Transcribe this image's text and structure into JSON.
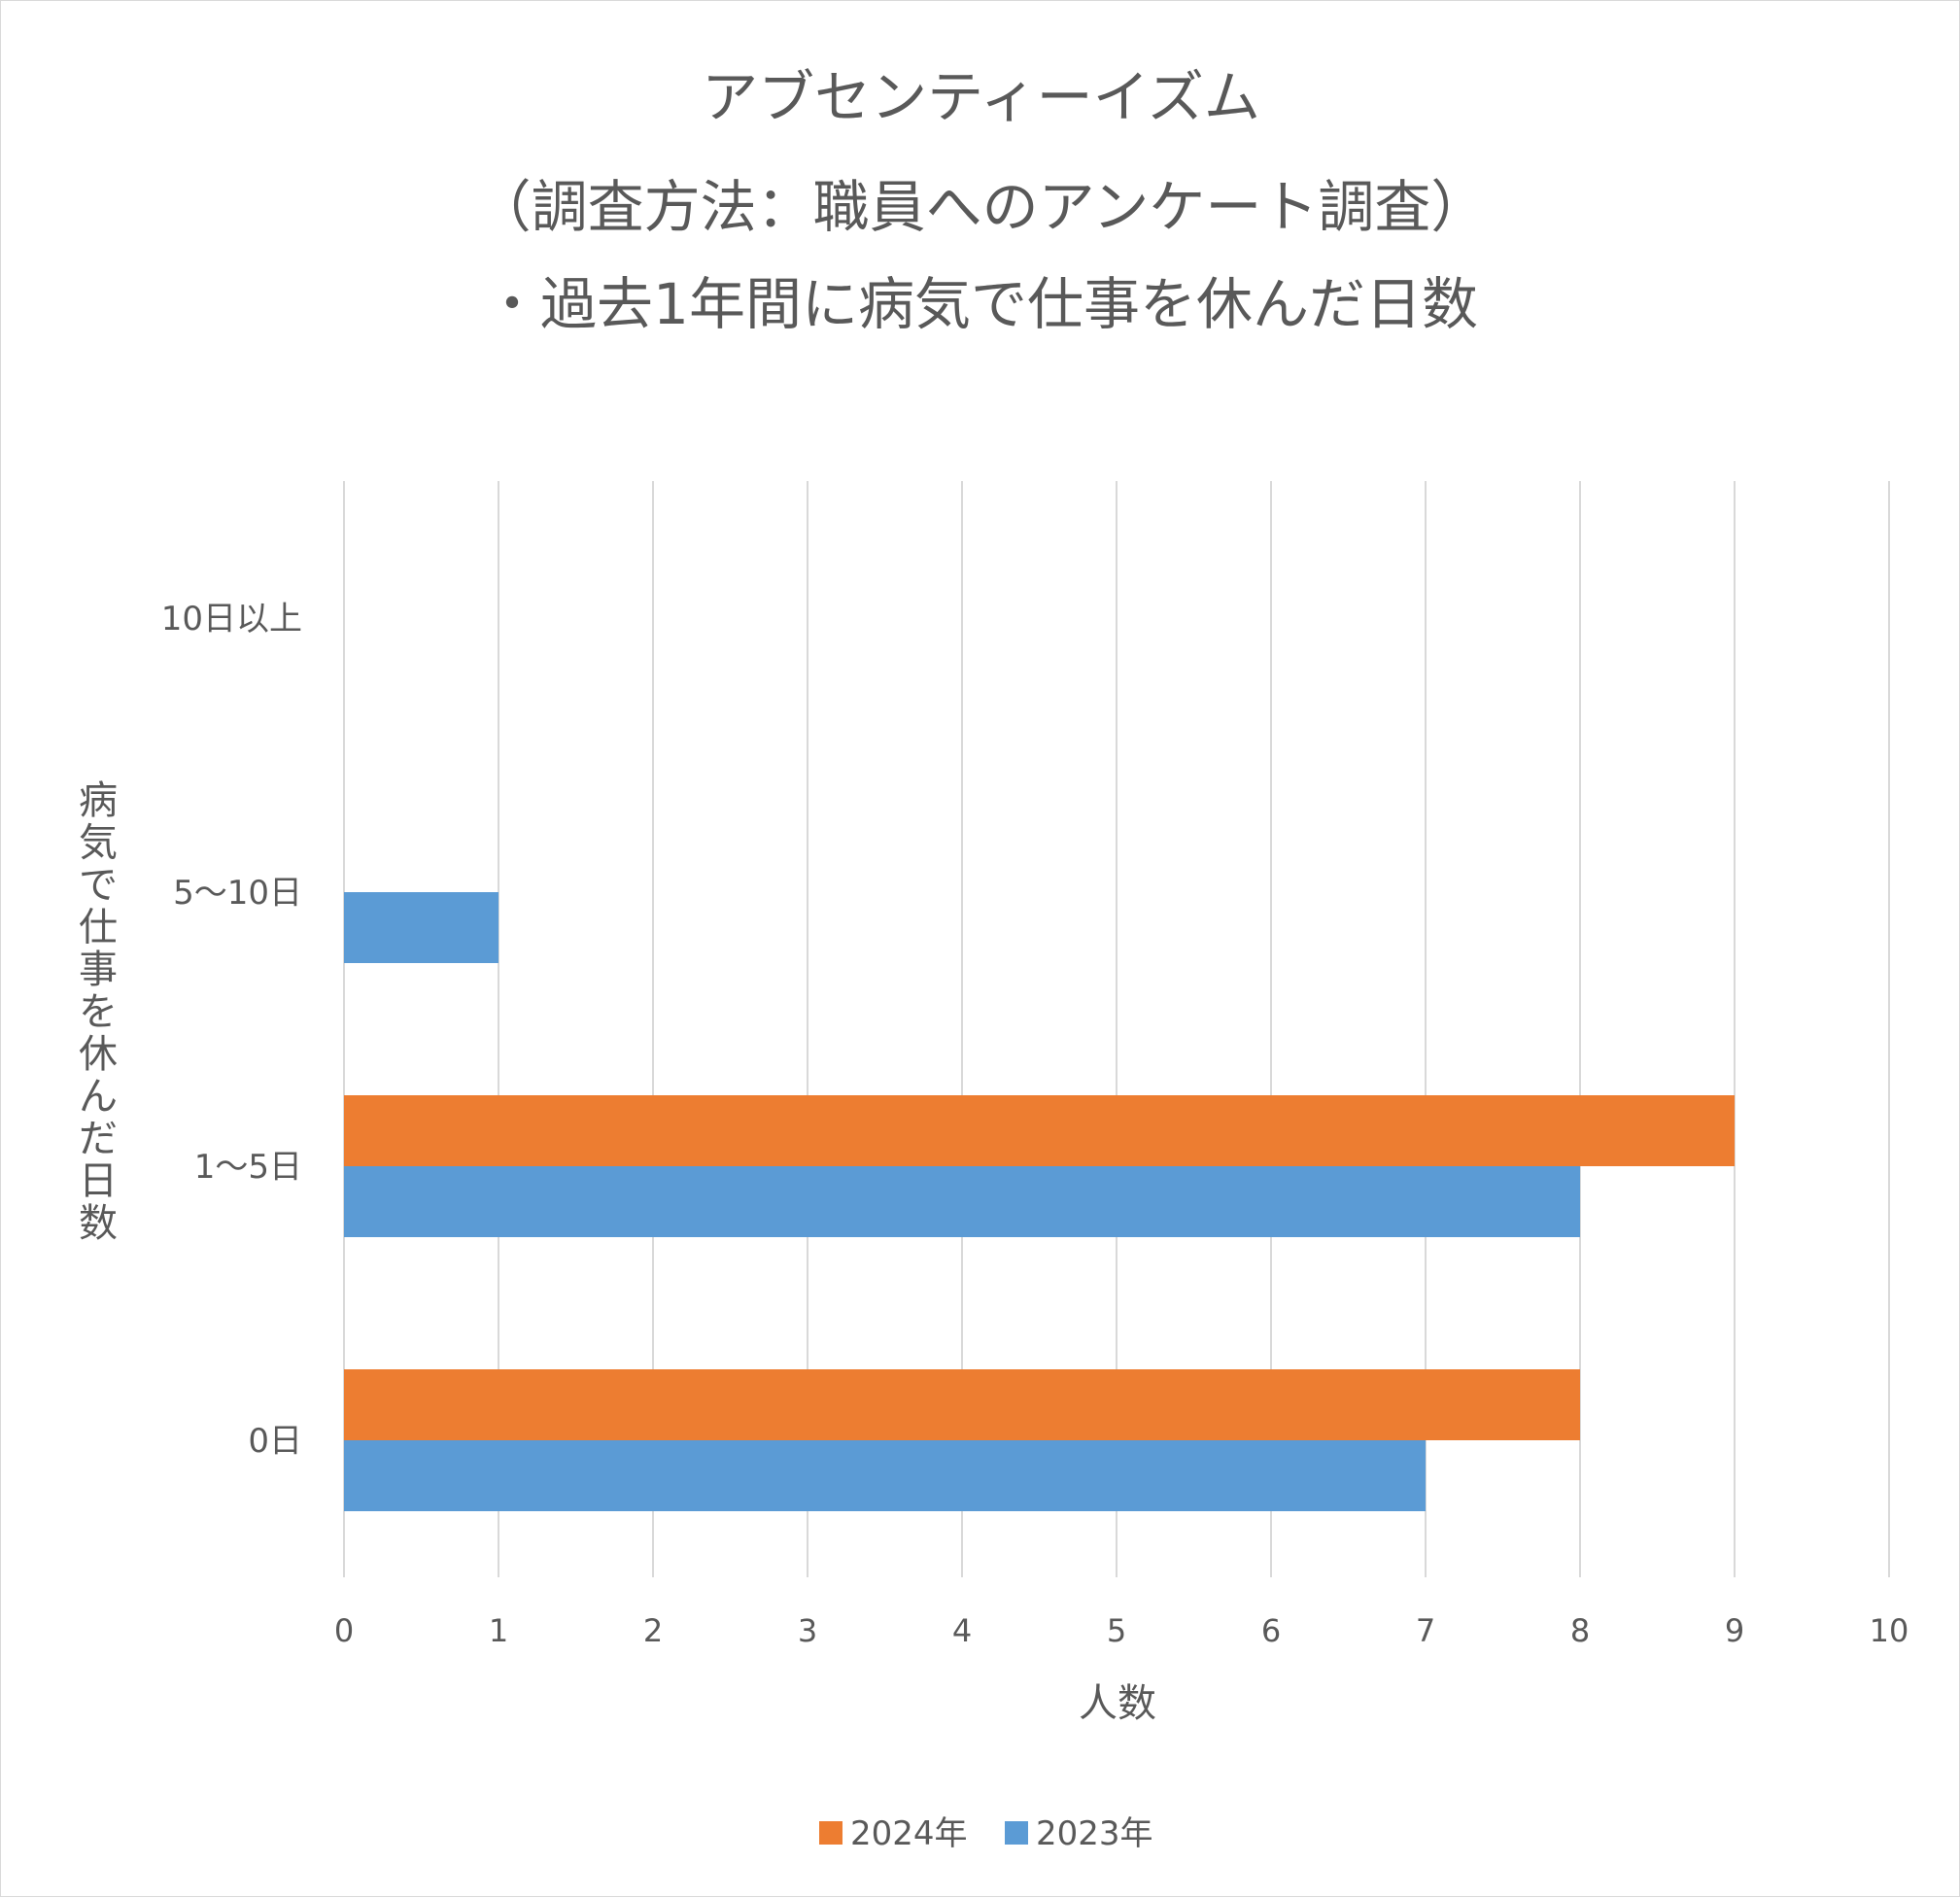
{
  "chart_data": {
    "type": "bar",
    "orientation": "horizontal",
    "title_lines": [
      "アブセンティーイズム",
      "（調査方法：職員へのアンケート調査）",
      "・過去1年間に病気で仕事を休んだ日数"
    ],
    "xlabel": "人数",
    "ylabel": "病気で仕事を休んだ日数",
    "categories": [
      "0日",
      "1～5日",
      "5～10日",
      "10日以上"
    ],
    "series": [
      {
        "name": "2023年",
        "values": [
          7,
          8,
          1,
          0
        ],
        "color": "#5b9bd5"
      },
      {
        "name": "2024年",
        "values": [
          8,
          9,
          0,
          0
        ],
        "color": "#ed7d31"
      }
    ],
    "xlim": [
      0,
      10
    ],
    "xticks": [
      "0",
      "1",
      "2",
      "3",
      "4",
      "5",
      "6",
      "7",
      "8",
      "9",
      "10"
    ],
    "grid": "vertical",
    "legend_position": "bottom",
    "legend_order": [
      "2024年",
      "2023年"
    ]
  }
}
